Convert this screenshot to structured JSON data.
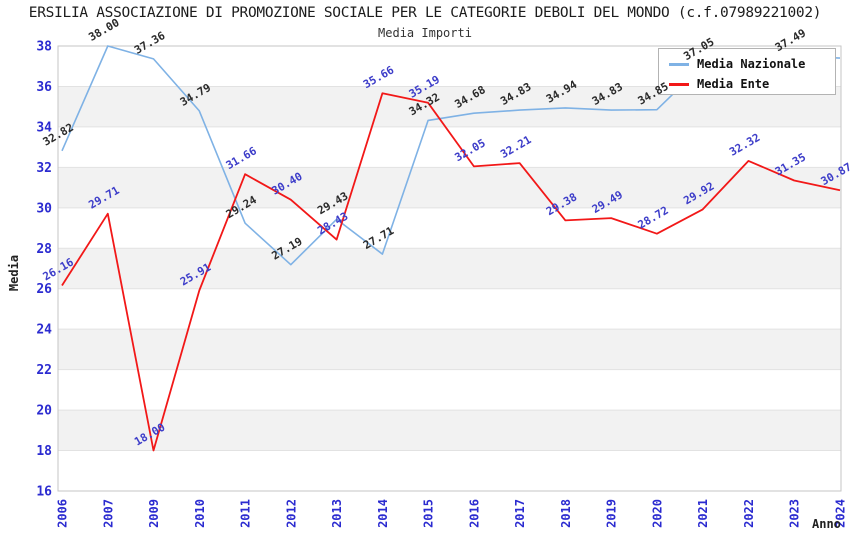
{
  "title": "ERSILIA ASSOCIAZIONE DI PROMOZIONE SOCIALE PER LE CATEGORIE DEBOLI DEL MONDO (c.f.07989221002)",
  "subtitle": "Media Importi",
  "axes": {
    "x_label": "Anno",
    "y_label": "Media",
    "y_ticks": [
      "38",
      "36",
      "34",
      "32",
      "30",
      "28",
      "26",
      "24",
      "22",
      "20",
      "18",
      "16"
    ],
    "tick_color": "#2b2bd0"
  },
  "legend": {
    "items": [
      {
        "label": "Media Nazionale",
        "color": "#7fb2e5"
      },
      {
        "label": "Media Ente",
        "color": "#f21818"
      }
    ]
  },
  "colors": {
    "band": "#f2f2f2",
    "grid": "#e2e2e2",
    "border": "#c6c6c6"
  },
  "chart_data": {
    "type": "line",
    "title": "Media Importi",
    "xlabel": "Anno",
    "ylabel": "Media",
    "ylim": [
      16,
      38
    ],
    "grid": "horizontal-bands",
    "legend_position": "top-right",
    "categories": [
      "2006",
      "2007",
      "2009",
      "2010",
      "2011",
      "2012",
      "2013",
      "2014",
      "2015",
      "2016",
      "2017",
      "2018",
      "2019",
      "2020",
      "2021",
      "2022",
      "2023",
      "2024"
    ],
    "series": [
      {
        "name": "Media Nazionale",
        "color": "#7fb2e5",
        "label_color": "#2a2a2a",
        "values": [
          32.82,
          38.0,
          37.36,
          34.79,
          29.24,
          27.19,
          29.43,
          27.71,
          34.32,
          34.68,
          34.83,
          34.94,
          34.83,
          34.85,
          37.05,
          37.46,
          37.49,
          37.4
        ],
        "labels": [
          "32.82",
          "38.00",
          "37.36",
          "34.79",
          "29.24",
          "27.19",
          "29.43",
          "27.71",
          "34.32",
          "34.68",
          "34.83",
          "34.94",
          "34.83",
          "34.85",
          "37.05",
          null,
          "37.49",
          null
        ]
      },
      {
        "name": "Media Ente",
        "color": "#f21818",
        "label_color": "#3d3dc9",
        "values": [
          26.16,
          29.71,
          18.0,
          25.91,
          31.66,
          30.4,
          28.43,
          35.66,
          35.19,
          32.05,
          32.21,
          29.38,
          29.49,
          28.72,
          29.92,
          32.32,
          31.35,
          30.87
        ],
        "labels": [
          "26.16",
          "29.71",
          "18.00",
          "25.91",
          "31.66",
          "30.40",
          "28.43",
          "35.66",
          "35.19",
          "32.05",
          "32.21",
          "29.38",
          "29.49",
          "28.72",
          "29.92",
          "32.32",
          "31.35",
          "30.87"
        ]
      }
    ]
  }
}
